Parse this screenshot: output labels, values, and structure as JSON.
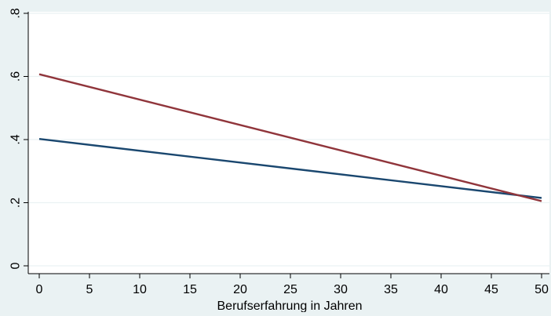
{
  "chart_data": {
    "type": "line",
    "title": "",
    "xlabel": "Berufserfahrung in Jahren",
    "ylabel": "",
    "xlim": [
      0,
      50
    ],
    "ylim": [
      0,
      0.8
    ],
    "x_ticks": [
      0,
      5,
      10,
      15,
      20,
      25,
      30,
      35,
      40,
      45,
      50
    ],
    "x_tick_labels": [
      "0",
      "5",
      "10",
      "15",
      "20",
      "25",
      "30",
      "35",
      "40",
      "45",
      "50"
    ],
    "y_ticks": [
      0,
      0.2,
      0.4,
      0.6,
      0.8
    ],
    "y_tick_labels": [
      "0",
      ".2",
      ".4",
      ".6",
      ".8"
    ],
    "grid": true,
    "legend": "none",
    "series": [
      {
        "color": "#1a476f",
        "x": [
          0,
          50
        ],
        "y": [
          0.402,
          0.215
        ]
      },
      {
        "color": "#90353b",
        "x": [
          0,
          50
        ],
        "y": [
          0.607,
          0.205
        ]
      }
    ]
  },
  "colors": {
    "plot_background": "#ffffff",
    "outer_background": "#eaf2f3",
    "grid": "#eaf2f3"
  }
}
